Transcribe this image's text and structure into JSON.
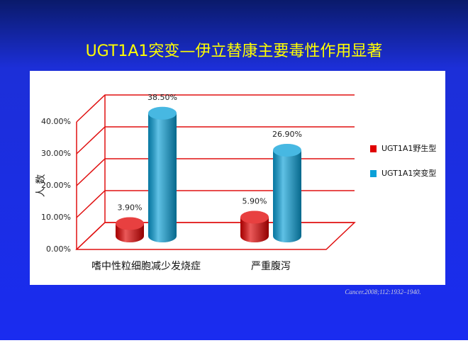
{
  "slide_title": "UGT1A1突变—伊立替康主要毒性作用显著",
  "citation": "Cancer.2008;112:1932–1940.",
  "chart_data": {
    "type": "bar3d",
    "ylabel": "人 数",
    "categories": [
      "嗜中性粒细胞减少发烧症",
      "严重腹泻"
    ],
    "series": [
      {
        "name": "UGT1A1野生型",
        "color": "#e00000",
        "values": [
          3.9,
          5.9
        ],
        "value_labels": [
          "3.90%",
          "5.90%"
        ]
      },
      {
        "name": "UGT1A1突变型",
        "color": "#0aa0d8",
        "values": [
          38.5,
          26.9
        ],
        "value_labels": [
          "38.50%",
          "26.90%"
        ]
      }
    ],
    "ylim": [
      0,
      40
    ],
    "yticks": [
      {
        "value": 0,
        "label": "0.00%"
      },
      {
        "value": 10,
        "label": "10.00%"
      },
      {
        "value": 20,
        "label": "20.00%"
      },
      {
        "value": 30,
        "label": "30.00%"
      },
      {
        "value": 40,
        "label": "40.00%"
      }
    ],
    "grid": true,
    "grid_color": "#e01010",
    "legend": "right"
  }
}
